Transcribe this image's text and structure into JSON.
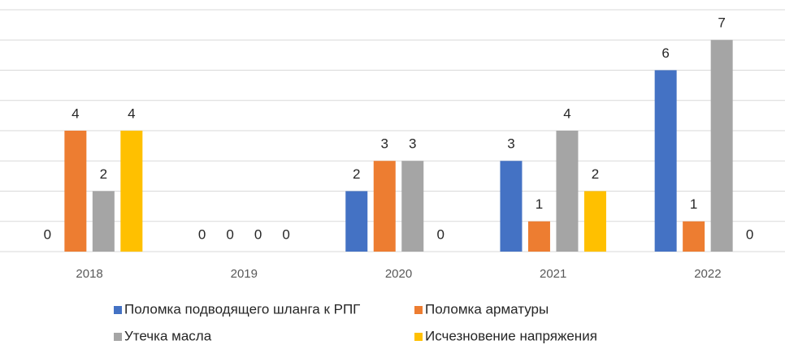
{
  "chart_data": {
    "type": "bar",
    "categories": [
      "2018",
      "2019",
      "2020",
      "2021",
      "2022"
    ],
    "series": [
      {
        "name": "Поломка подводящего шланга к РПГ",
        "color": "#4472c4",
        "values": [
          0,
          0,
          2,
          3,
          6
        ]
      },
      {
        "name": "Поломка арматуры",
        "color": "#ed7d31",
        "values": [
          4,
          0,
          3,
          1,
          1
        ]
      },
      {
        "name": "Утечка масла",
        "color": "#a5a5a5",
        "values": [
          2,
          0,
          3,
          4,
          7
        ]
      },
      {
        "name": "Исчезновение напряжения",
        "color": "#ffc000",
        "values": [
          4,
          0,
          0,
          2,
          0
        ]
      }
    ],
    "ylim": [
      0,
      8
    ],
    "yticks": [
      0,
      1,
      2,
      3,
      4,
      5,
      6,
      7,
      8
    ],
    "grid": true,
    "legend": "bottom"
  }
}
